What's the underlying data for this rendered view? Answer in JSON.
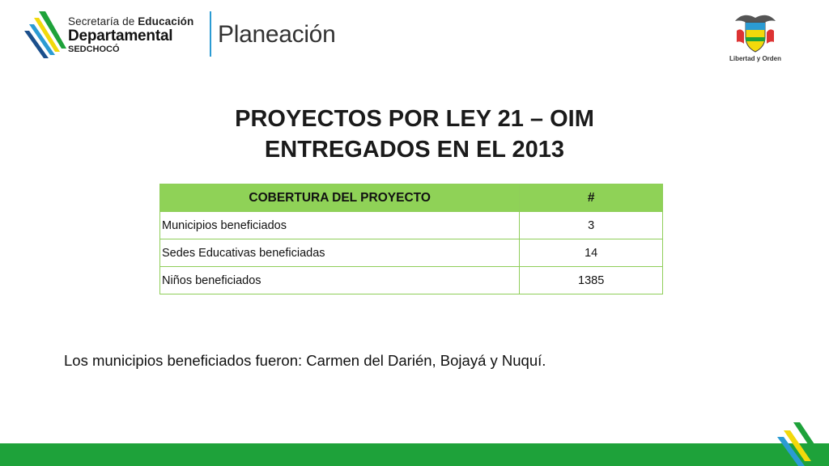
{
  "header": {
    "logo_line1_regular": "Secretaría de ",
    "logo_line1_bold": "Educación",
    "logo_line2": "Departamental",
    "logo_line3": "SEDCHOCÓ",
    "logo_planeacion": "Planeación",
    "crest_caption": "Libertad y Orden"
  },
  "title": {
    "line1": "PROYECTOS POR LEY 21 – OIM",
    "line2": "ENTREGADOS EN EL 2013"
  },
  "table": {
    "headers": [
      "COBERTURA DEL PROYECTO",
      "#"
    ],
    "rows": [
      {
        "label": "Municipios beneficiados",
        "value": "3"
      },
      {
        "label": "Sedes Educativas beneficiadas",
        "value": "14"
      },
      {
        "label": "Niños beneficiados",
        "value": "1385"
      }
    ]
  },
  "note": "Los municipios beneficiados fueron: Carmen del Darién, Bojayá y Nuquí.",
  "colors": {
    "accent_green": "#8fd257",
    "footer_green": "#1ea23a",
    "divider_blue": "#2b9bd3"
  },
  "icons": {
    "logo": "sedchoco-logo-icon",
    "crest": "colombia-coat-of-arms-icon",
    "footer": "stripes-decoration-icon"
  }
}
